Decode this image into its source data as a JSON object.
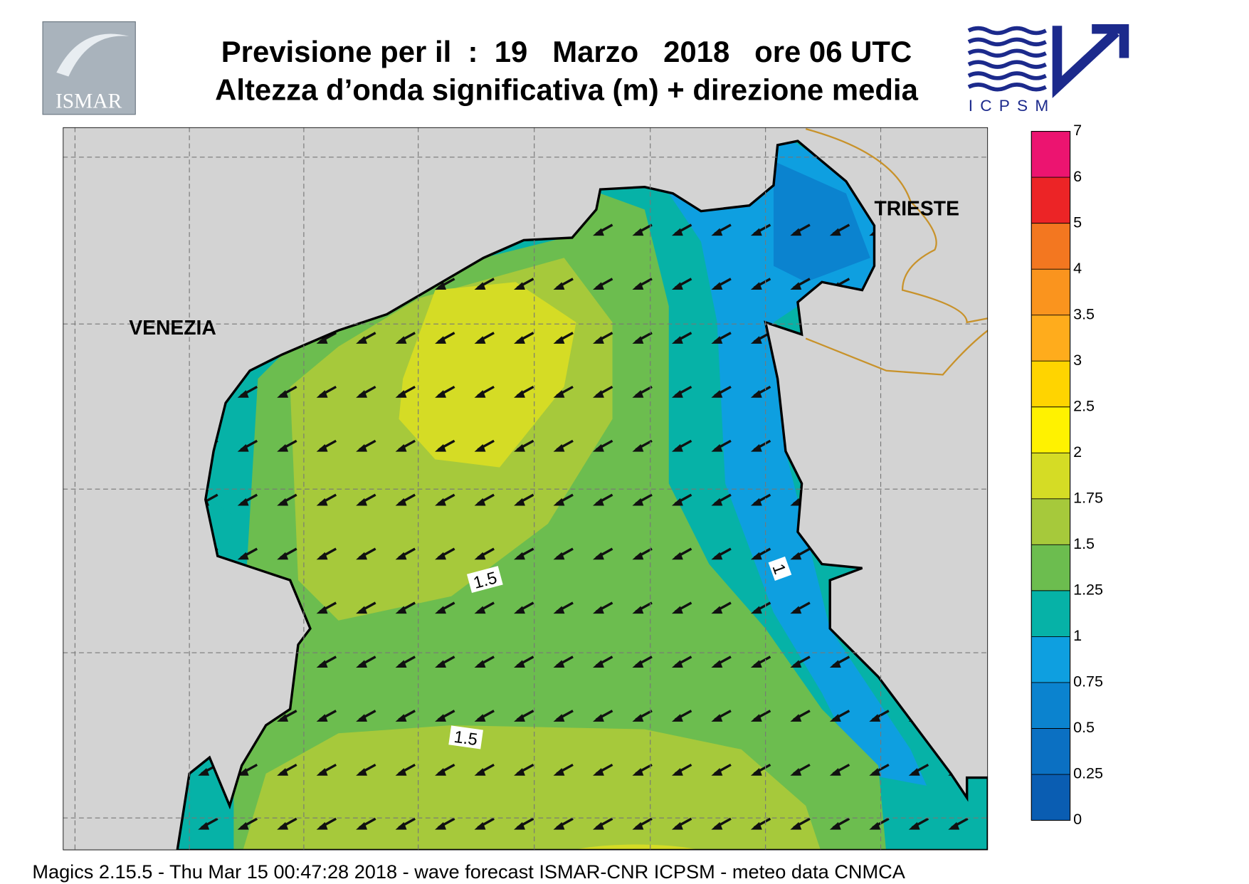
{
  "header": {
    "title": "Previsione per il  :  19   Marzo   2018   ore 06 UTC",
    "subtitle": "Altezza d’onda significativa (m) + direzione media"
  },
  "logos": {
    "left": "ISMAR",
    "right": "ICPSM"
  },
  "map": {
    "labels": [
      "VENEZIA",
      "TRIESTE"
    ],
    "contour_labels": [
      1.5,
      1.5,
      1
    ]
  },
  "legend": {
    "ticks": [
      0,
      0.25,
      0.5,
      0.75,
      1,
      1.25,
      1.5,
      1.75,
      2,
      2.5,
      3,
      3.5,
      4,
      5,
      6,
      7
    ],
    "colors": [
      "#0a5db2",
      "#0b70c2",
      "#0b83cf",
      "#0e9fe0",
      "#06b2a7",
      "#6cbd4f",
      "#a6c93b",
      "#d5dc25",
      "#fff200",
      "#ffd400",
      "#ffac1c",
      "#fa941e",
      "#f37720",
      "#ec2426",
      "#ec1470"
    ]
  },
  "footer": "Magics 2.15.5 - Thu Mar 15 00:47:28 2018 - wave forecast  ISMAR-CNR  ICPSM - meteo data   CNMCA"
}
